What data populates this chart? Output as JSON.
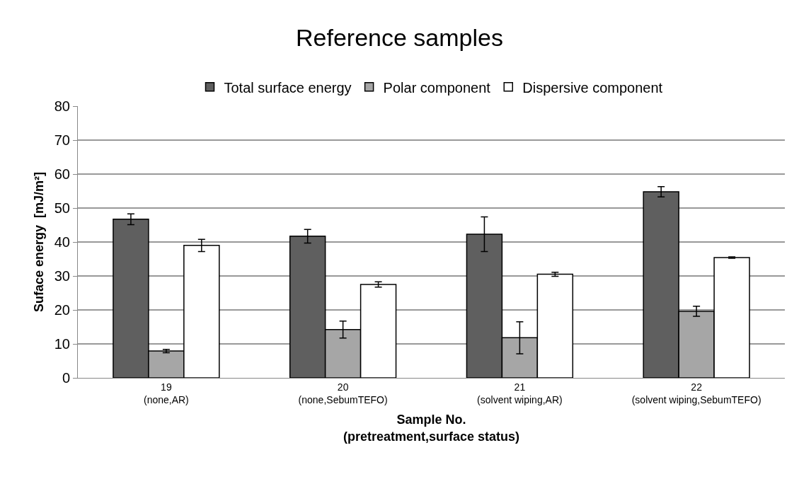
{
  "chart_data": {
    "type": "bar",
    "title": "Reference samples",
    "xlabel": "Sample No.\n(pretreatment,surface status)",
    "ylabel": "Suface energy  [mJ/m²]",
    "categories": [
      "19\n(none,AR)",
      "20\n(none,SebumTEFO)",
      "21\n(solvent wiping,AR)",
      "22\n(solvent wiping,SebumTEFO)"
    ],
    "series": [
      {
        "name": "Total surface energy",
        "color": "#5f5f5f",
        "values": [
          46.7,
          41.7,
          42.3,
          54.8
        ],
        "errors": [
          1.6,
          2.0,
          5.1,
          1.5
        ]
      },
      {
        "name": "Polar component",
        "color": "#a6a6a6",
        "values": [
          7.9,
          14.2,
          11.8,
          19.6
        ],
        "errors": [
          0.5,
          2.5,
          4.7,
          1.5
        ]
      },
      {
        "name": "Dispersive component",
        "color": "#ffffff",
        "values": [
          39.0,
          27.5,
          30.5,
          35.4
        ],
        "errors": [
          1.8,
          0.8,
          0.6,
          0.2
        ]
      }
    ],
    "ylim": [
      0,
      80
    ],
    "yticks": [
      0,
      10,
      20,
      30,
      40,
      50,
      60,
      70,
      80
    ],
    "grid": "y",
    "legend": "top"
  }
}
